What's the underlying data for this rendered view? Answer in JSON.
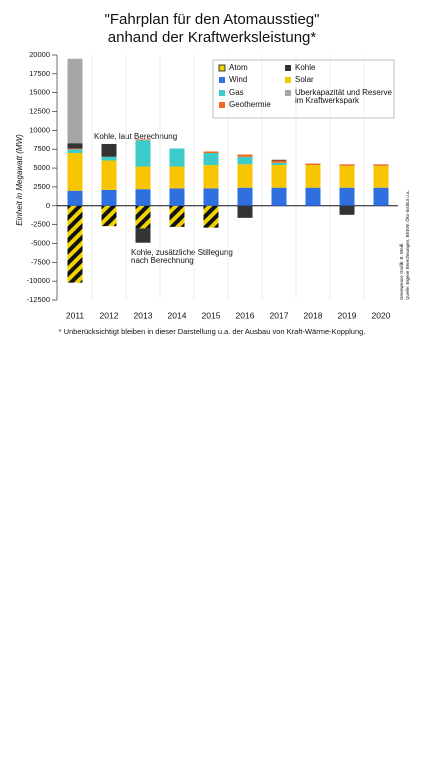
{
  "chart_data": {
    "type": "stacked_bar",
    "title": "\"Fahrplan für den Atomausstieg\"",
    "subtitle": "anhand der Kraftwerksleistung*",
    "y_label": "Einheit in Megawatt (MW)",
    "categories": [
      "2011",
      "2012",
      "2013",
      "2014",
      "2015",
      "2016",
      "2017",
      "2018",
      "2019",
      "2020"
    ],
    "series": [
      {
        "name": "Atom",
        "color": "#f2d200",
        "values": [
          -10200,
          -2700,
          -3000,
          -2800,
          -2900,
          0,
          0,
          0,
          0,
          0
        ]
      },
      {
        "name": "Wind",
        "color": "#2f6fe0",
        "values": [
          2000,
          2100,
          2200,
          2300,
          2300,
          2400,
          2400,
          2400,
          2400,
          2400
        ]
      },
      {
        "name": "Solar",
        "color": "#f7c600",
        "values": [
          5000,
          3900,
          3000,
          2900,
          3100,
          3100,
          3000,
          3000,
          2900,
          2900
        ]
      },
      {
        "name": "Gas",
        "color": "#3ccaca",
        "values": [
          500,
          500,
          3500,
          2400,
          1600,
          1000,
          300,
          0,
          0,
          0
        ]
      },
      {
        "name": "Geothermie",
        "color": "#f26a1b",
        "values": [
          100,
          0,
          100,
          0,
          200,
          300,
          300,
          200,
          200,
          200
        ]
      },
      {
        "name": "Kohle",
        "color": "#333333",
        "values": [
          700,
          1700,
          -1900,
          0,
          0,
          -1600,
          100,
          0,
          -1200,
          0
        ]
      },
      {
        "name": "Überkapazität und Reserve im Kraftwerkspark",
        "color": "#a6a6a6",
        "values": [
          11200,
          0,
          0,
          0,
          0,
          0,
          0,
          0,
          0,
          0
        ]
      }
    ],
    "ylim": [
      -12500,
      20000
    ],
    "yticks": [
      -12500,
      -10000,
      -7500,
      -5000,
      -2500,
      0,
      2500,
      5000,
      7500,
      10000,
      12500,
      15000,
      17500,
      20000
    ],
    "annotations": [
      "Kohle, laut Berechnung",
      "Kohle, zusätzliche Stillegung nach Berechnung"
    ],
    "footnote": "* Unberücksichtigt bleiben in dieser Darstellung u.a. der Ausbau von Kraft-Wärme-Kopplung.",
    "credit": "Greenpeace Grafik: B. Weiß",
    "source": "Quelle: Eigene Berechnungen, BEEW, Öko-Institut u.a."
  }
}
